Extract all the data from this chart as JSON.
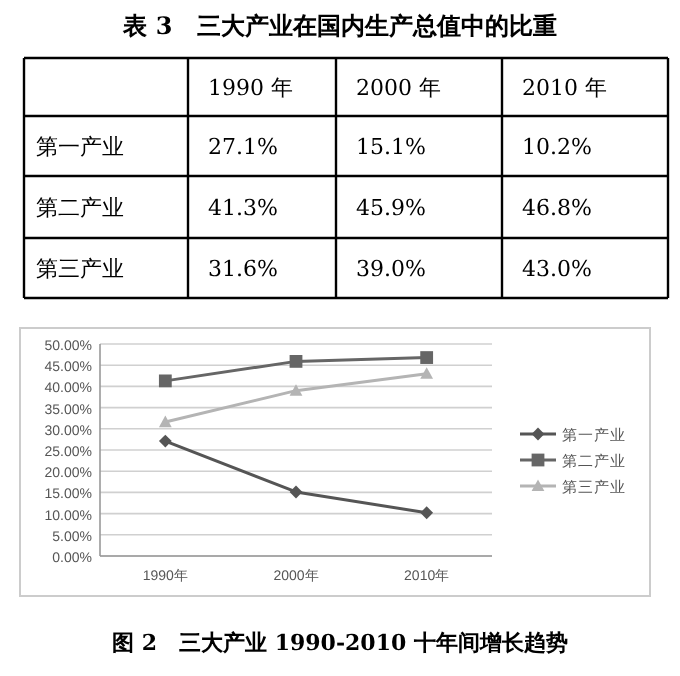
{
  "chart_data": [
    {
      "type": "other",
      "title": "表 3　三大产业在国内生产总值中的比重",
      "categories": [
        "1990 年",
        "2000 年",
        "2010 年"
      ],
      "y_categories": [
        "第一产业",
        "第二产业",
        "第三产业"
      ],
      "cell_labels": [
        [
          "27.1%",
          "15.1%",
          "10.2%"
        ],
        [
          "41.3%",
          "45.9%",
          "46.8%"
        ],
        [
          "31.6%",
          "39.0%",
          "43.0%"
        ]
      ]
    },
    {
      "type": "line",
      "categories": [
        "1990年",
        "2000年",
        "2010年"
      ],
      "series": [
        {
          "name": "第一产业",
          "color": "#555555",
          "marker": "diamond",
          "values": [
            27.1,
            15.1,
            10.2
          ]
        },
        {
          "name": "第二产业",
          "color": "#666666",
          "marker": "square",
          "values": [
            41.3,
            45.9,
            46.8
          ]
        },
        {
          "name": "第三产业",
          "color": "#b4b4b4",
          "marker": "triangle",
          "values": [
            31.6,
            39.0,
            43.0
          ]
        }
      ],
      "ylim": [
        0,
        50
      ],
      "yticks": [
        {
          "value": 0,
          "label": "0.00%"
        },
        {
          "value": 5,
          "label": "5.00%"
        },
        {
          "value": 10,
          "label": "10.00%"
        },
        {
          "value": 15,
          "label": "15.00%"
        },
        {
          "value": 20,
          "label": "20.00%"
        },
        {
          "value": 25,
          "label": "25.00%"
        },
        {
          "value": 30,
          "label": "30.00%"
        },
        {
          "value": 35,
          "label": "35.00%"
        },
        {
          "value": 40,
          "label": "40.00%"
        },
        {
          "value": 45,
          "label": "45.00%"
        },
        {
          "value": 50,
          "label": "50.00%"
        }
      ],
      "grid": "y",
      "legend": "right",
      "annotations": [
        "图 2　三大产业 1990-2010 十年间增长趋势"
      ]
    }
  ]
}
